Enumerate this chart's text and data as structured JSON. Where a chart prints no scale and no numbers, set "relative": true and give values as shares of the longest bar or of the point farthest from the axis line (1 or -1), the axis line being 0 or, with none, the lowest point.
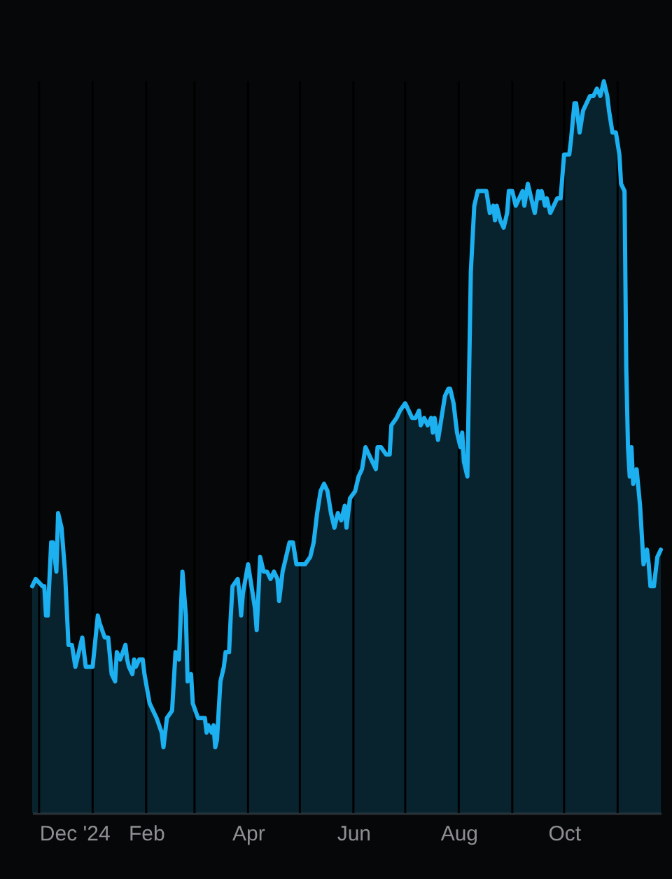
{
  "chart_data": {
    "type": "area",
    "relative": true,
    "color": "#1cb0f0",
    "x": [
      "2024-11-27",
      "2024-11-29",
      "2024-12-03",
      "2024-12-04",
      "2024-12-05",
      "2024-12-06",
      "2024-12-08",
      "2024-12-09",
      "2024-12-11",
      "2024-12-12",
      "2024-12-14",
      "2024-12-16",
      "2024-12-18",
      "2024-12-20",
      "2024-12-22",
      "2024-12-24",
      "2024-12-26",
      "2024-12-28",
      "2024-12-30",
      "2025-01-01",
      "2025-01-04",
      "2025-01-05",
      "2025-01-08",
      "2025-01-10",
      "2025-01-12",
      "2025-01-14",
      "2025-01-15",
      "2025-01-17",
      "2025-01-20",
      "2025-01-21",
      "2025-01-22",
      "2025-01-24",
      "2025-01-25",
      "2025-01-26",
      "2025-01-28",
      "2025-01-30",
      "2025-01-31",
      "2025-02-03",
      "2025-02-07",
      "2025-02-10",
      "2025-02-11",
      "2025-02-13",
      "2025-02-16",
      "2025-02-18",
      "2025-02-20",
      "2025-02-22",
      "2025-02-24",
      "2025-02-25",
      "2025-02-27",
      "2025-02-28",
      "2025-03-03",
      "2025-03-05",
      "2025-03-07",
      "2025-03-08",
      "2025-03-09",
      "2025-03-11",
      "2025-03-12",
      "2025-03-13",
      "2025-03-14",
      "2025-03-16",
      "2025-03-18",
      "2025-03-19",
      "2025-03-21",
      "2025-03-22",
      "2025-03-23",
      "2025-03-26",
      "2025-03-27",
      "2025-03-28",
      "2025-03-29",
      "2025-04-01",
      "2025-04-03",
      "2025-04-05",
      "2025-04-06",
      "2025-04-08",
      "2025-04-10",
      "2025-04-12",
      "2025-04-14",
      "2025-04-16",
      "2025-04-18",
      "2025-04-19",
      "2025-04-21",
      "2025-04-23",
      "2025-04-25",
      "2025-04-27",
      "2025-04-29",
      "2025-04-30",
      "2025-05-02",
      "2025-05-04",
      "2025-05-07",
      "2025-05-09",
      "2025-05-11",
      "2025-05-13",
      "2025-05-15",
      "2025-05-17",
      "2025-05-19",
      "2025-05-21",
      "2025-05-23",
      "2025-05-25",
      "2025-05-27",
      "2025-05-28",
      "2025-05-30",
      "2025-06-02",
      "2025-06-04",
      "2025-06-06",
      "2025-06-08",
      "2025-06-10",
      "2025-06-12",
      "2025-06-14",
      "2025-06-15",
      "2025-06-17",
      "2025-06-20",
      "2025-06-22",
      "2025-06-23",
      "2025-06-26",
      "2025-06-28",
      "2025-07-01",
      "2025-07-03",
      "2025-07-05",
      "2025-07-07",
      "2025-07-09",
      "2025-07-10",
      "2025-07-12",
      "2025-07-14",
      "2025-07-16",
      "2025-07-17",
      "2025-07-18",
      "2025-07-20",
      "2025-07-22",
      "2025-07-24",
      "2025-07-26",
      "2025-07-27",
      "2025-07-29",
      "2025-07-31",
      "2025-08-02",
      "2025-08-03",
      "2025-08-04",
      "2025-08-06",
      "2025-08-08",
      "2025-08-10",
      "2025-08-12",
      "2025-08-15",
      "2025-08-17",
      "2025-08-19",
      "2025-08-21",
      "2025-08-22",
      "2025-08-23",
      "2025-08-25",
      "2025-08-27",
      "2025-08-29",
      "2025-08-30",
      "2025-09-01",
      "2025-09-03",
      "2025-09-05",
      "2025-09-07",
      "2025-09-08",
      "2025-09-10",
      "2025-09-13",
      "2025-09-14",
      "2025-09-16",
      "2025-09-17",
      "2025-09-18",
      "2025-09-20",
      "2025-09-21",
      "2025-09-23",
      "2025-09-25",
      "2025-09-27",
      "2025-09-29",
      "2025-10-01",
      "2025-10-04",
      "2025-10-05",
      "2025-10-07",
      "2025-10-08",
      "2025-10-10",
      "2025-10-12",
      "2025-10-14",
      "2025-10-16",
      "2025-10-18",
      "2025-10-20",
      "2025-10-22",
      "2025-10-23",
      "2025-10-24",
      "2025-10-26",
      "2025-10-27",
      "2025-10-29",
      "2025-10-31",
      "2025-11-02",
      "2025-11-03",
      "2025-11-05",
      "2025-11-06",
      "2025-11-07",
      "2025-11-08",
      "2025-11-09",
      "2025-11-10",
      "2025-11-12",
      "2025-11-14",
      "2025-11-16",
      "2025-11-18",
      "2025-11-19",
      "2025-11-20",
      "2025-11-22",
      "2025-11-24",
      "2025-11-26"
    ],
    "values": [
      0.31,
      0.32,
      0.31,
      0.31,
      0.27,
      0.27,
      0.37,
      0.37,
      0.33,
      0.41,
      0.39,
      0.33,
      0.23,
      0.23,
      0.2,
      0.22,
      0.24,
      0.2,
      0.2,
      0.2,
      0.27,
      0.26,
      0.24,
      0.24,
      0.19,
      0.18,
      0.22,
      0.21,
      0.23,
      0.21,
      0.2,
      0.19,
      0.21,
      0.2,
      0.21,
      0.21,
      0.19,
      0.15,
      0.13,
      0.11,
      0.09,
      0.13,
      0.14,
      0.22,
      0.21,
      0.33,
      0.27,
      0.18,
      0.19,
      0.15,
      0.13,
      0.13,
      0.13,
      0.11,
      0.12,
      0.11,
      0.12,
      0.09,
      0.1,
      0.18,
      0.2,
      0.22,
      0.22,
      0.27,
      0.31,
      0.32,
      0.3,
      0.27,
      0.3,
      0.34,
      0.31,
      0.28,
      0.25,
      0.35,
      0.33,
      0.33,
      0.32,
      0.33,
      0.32,
      0.29,
      0.33,
      0.35,
      0.37,
      0.37,
      0.34,
      0.34,
      0.34,
      0.34,
      0.35,
      0.37,
      0.41,
      0.44,
      0.45,
      0.44,
      0.41,
      0.39,
      0.41,
      0.4,
      0.42,
      0.39,
      0.43,
      0.44,
      0.46,
      0.47,
      0.5,
      0.49,
      0.48,
      0.47,
      0.5,
      0.5,
      0.49,
      0.49,
      0.53,
      0.54,
      0.55,
      0.56,
      0.55,
      0.54,
      0.54,
      0.55,
      0.53,
      0.54,
      0.53,
      0.54,
      0.52,
      0.54,
      0.51,
      0.54,
      0.57,
      0.58,
      0.58,
      0.56,
      0.52,
      0.5,
      0.52,
      0.48,
      0.46,
      0.74,
      0.83,
      0.85,
      0.85,
      0.85,
      0.82,
      0.83,
      0.81,
      0.83,
      0.81,
      0.8,
      0.82,
      0.85,
      0.85,
      0.83,
      0.84,
      0.85,
      0.83,
      0.86,
      0.83,
      0.82,
      0.85,
      0.84,
      0.85,
      0.83,
      0.84,
      0.82,
      0.83,
      0.84,
      0.84,
      0.9,
      0.9,
      0.92,
      0.97,
      0.97,
      0.93,
      0.96,
      0.97,
      0.98,
      0.98,
      0.99,
      0.98,
      0.99,
      1.0,
      0.98,
      0.96,
      0.93,
      0.93,
      0.9,
      0.86,
      0.85,
      0.61,
      0.5,
      0.46,
      0.5,
      0.45,
      0.47,
      0.42,
      0.34,
      0.36,
      0.34,
      0.31,
      0.31,
      0.35,
      0.36
    ],
    "xlim": [
      "2024-11-27",
      "2025-11-26"
    ],
    "xticks": [
      {
        "value": "2024-12-01",
        "label": "Dec '24"
      },
      {
        "value": "2025-01-01",
        "label": null
      },
      {
        "value": "2025-02-01",
        "label": "Feb"
      },
      {
        "value": "2025-03-01",
        "label": null
      },
      {
        "value": "2025-04-01",
        "label": "Apr"
      },
      {
        "value": "2025-05-01",
        "label": null
      },
      {
        "value": "2025-06-01",
        "label": "Jun"
      },
      {
        "value": "2025-07-01",
        "label": null
      },
      {
        "value": "2025-08-01",
        "label": "Aug"
      },
      {
        "value": "2025-09-01",
        "label": null
      },
      {
        "value": "2025-10-01",
        "label": "Oct"
      },
      {
        "value": "2025-11-01",
        "label": null
      }
    ],
    "grid": "x"
  }
}
